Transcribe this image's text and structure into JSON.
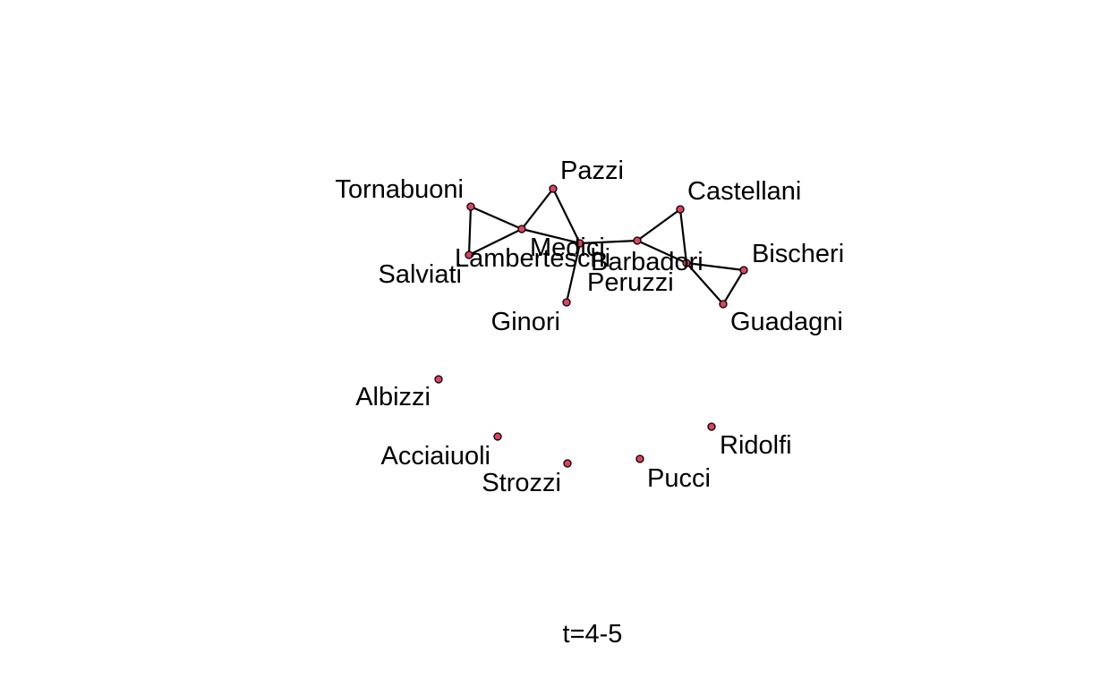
{
  "caption": "t=4-5",
  "colors": {
    "node_fill": "#e0415c",
    "node_stroke": "#000000",
    "edge": "#000000"
  },
  "nodes": [
    {
      "id": "tornabuoni",
      "label": "Tornabuoni"
    },
    {
      "id": "pazzi",
      "label": "Pazzi"
    },
    {
      "id": "lamberteschi",
      "label": "Lamberteschi"
    },
    {
      "id": "salviati",
      "label": "Salviati"
    },
    {
      "id": "medici",
      "label": "Medici"
    },
    {
      "id": "barbadori",
      "label": "Barbadori"
    },
    {
      "id": "castellani",
      "label": "Castellani"
    },
    {
      "id": "peruzzi",
      "label": "Peruzzi"
    },
    {
      "id": "bischeri",
      "label": "Bischeri"
    },
    {
      "id": "guadagni",
      "label": "Guadagni"
    },
    {
      "id": "ginori",
      "label": "Ginori"
    },
    {
      "id": "albizzi",
      "label": "Albizzi"
    },
    {
      "id": "acciaiuoli",
      "label": "Acciaiuoli"
    },
    {
      "id": "strozzi",
      "label": "Strozzi"
    },
    {
      "id": "pucci",
      "label": "Pucci"
    },
    {
      "id": "ridolfi",
      "label": "Ridolfi"
    }
  ],
  "edges": [
    [
      "tornabuoni",
      "lamberteschi"
    ],
    [
      "tornabuoni",
      "salviati"
    ],
    [
      "salviati",
      "lamberteschi"
    ],
    [
      "lamberteschi",
      "pazzi"
    ],
    [
      "lamberteschi",
      "medici"
    ],
    [
      "pazzi",
      "medici"
    ],
    [
      "medici",
      "barbadori"
    ],
    [
      "medici",
      "ginori"
    ],
    [
      "barbadori",
      "castellani"
    ],
    [
      "barbadori",
      "peruzzi"
    ],
    [
      "castellani",
      "peruzzi"
    ],
    [
      "peruzzi",
      "bischeri"
    ],
    [
      "peruzzi",
      "guadagni"
    ],
    [
      "bischeri",
      "guadagni"
    ]
  ]
}
